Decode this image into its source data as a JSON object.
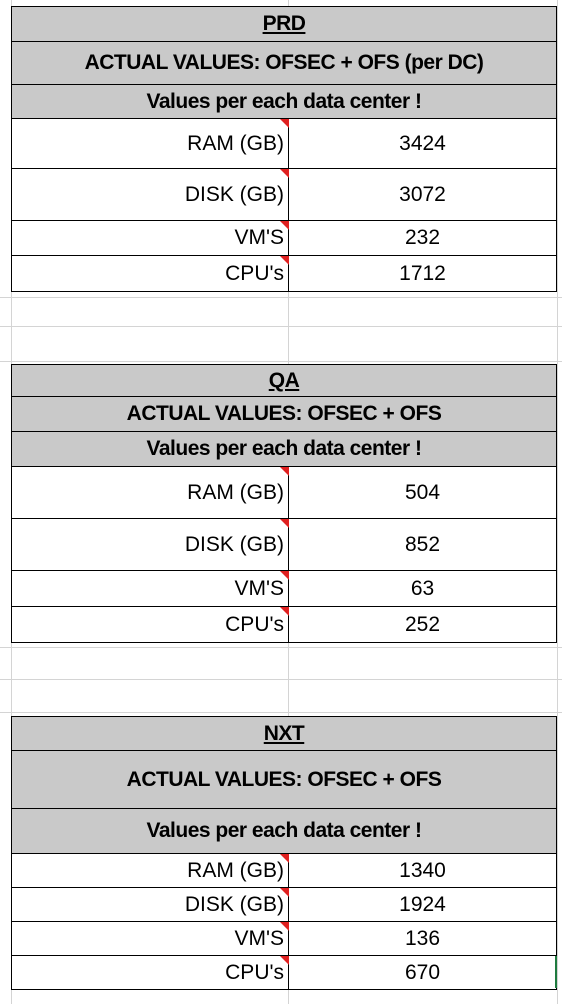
{
  "sections": [
    {
      "title": "PRD",
      "subtitle": "ACTUAL VALUES: OFSEC + OFS (per DC)",
      "note": "Values per each data center !",
      "rows": [
        {
          "label": "RAM (GB)",
          "value": "3424"
        },
        {
          "label": "DISK (GB)",
          "value": "3072"
        },
        {
          "label": "VM'S",
          "value": "232"
        },
        {
          "label": "CPU's",
          "value": "1712"
        }
      ]
    },
    {
      "title": "QA",
      "subtitle": "ACTUAL VALUES: OFSEC + OFS",
      "note": "Values per each data center !",
      "rows": [
        {
          "label": "RAM (GB)",
          "value": "504"
        },
        {
          "label": "DISK (GB)",
          "value": "852"
        },
        {
          "label": "VM'S",
          "value": "63"
        },
        {
          "label": "CPU's",
          "value": "252"
        }
      ]
    },
    {
      "title": "NXT",
      "subtitle": "ACTUAL VALUES: OFSEC + OFS",
      "note": "Values per each data center !",
      "rows": [
        {
          "label": "RAM (GB)",
          "value": "1340"
        },
        {
          "label": "DISK (GB)",
          "value": "1924"
        },
        {
          "label": "VM'S",
          "value": "136"
        },
        {
          "label": "CPU's",
          "value": "670"
        }
      ]
    }
  ],
  "colors": {
    "header_fill": "#c9c9c9",
    "gridline": "#d4d4d4",
    "comment_indicator": "#e02020",
    "selection": "#1e7b3f"
  }
}
